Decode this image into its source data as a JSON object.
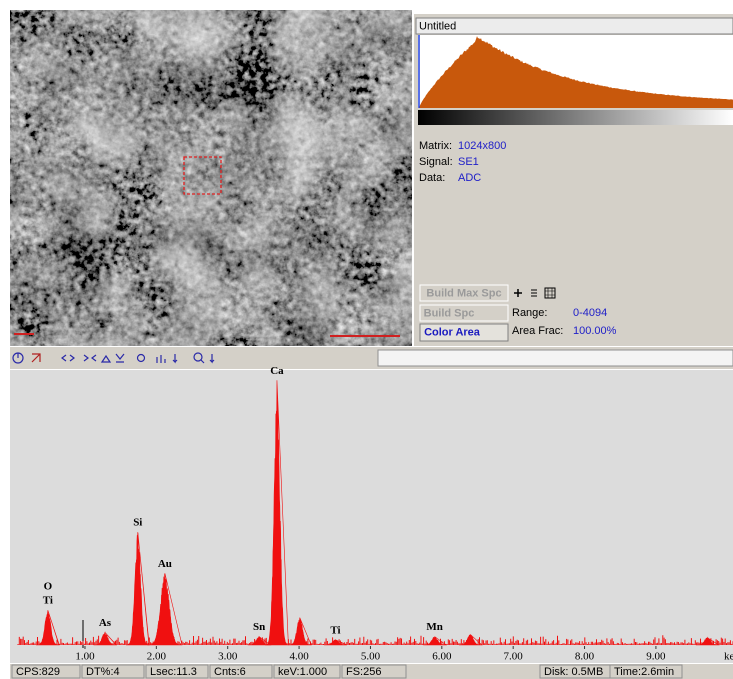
{
  "panel": {
    "title": "Untitled",
    "matrix_label": "Matrix:",
    "matrix_value": "1024x800",
    "signal_label": "Signal:",
    "signal_value": "SE1",
    "data_label": "Data:",
    "data_value": "ADC",
    "buttons": [
      "Build Max Spc",
      "Build Spc",
      "Color Area"
    ],
    "range_label": "Range:",
    "range_value": "0-4094",
    "area_frac_label": "Area Frac:",
    "area_frac_value": "100.00%"
  },
  "spectrum": {
    "xlim": [
      0,
      10.08
    ],
    "ylim": [
      0,
      256
    ],
    "xticks": [
      {
        "value": 1,
        "label": "1.00"
      },
      {
        "value": 2,
        "label": "2.00"
      },
      {
        "value": 3,
        "label": "3.00"
      },
      {
        "value": 4,
        "label": "4.00"
      },
      {
        "value": 5,
        "label": "5.00"
      },
      {
        "value": 6,
        "label": "6.00"
      },
      {
        "value": 7,
        "label": "7.00"
      },
      {
        "value": 8,
        "label": "8.00"
      },
      {
        "value": 9,
        "label": "9.00"
      }
    ],
    "x_unit": "ke",
    "peaks": [
      {
        "labels": [
          "O",
          "Ti"
        ],
        "x": 0.48,
        "counts": 33
      },
      {
        "labels": [
          "As"
        ],
        "x": 1.28,
        "counts": 12
      },
      {
        "labels": [
          "Si"
        ],
        "x": 1.74,
        "counts": 107
      },
      {
        "labels": [
          "Au"
        ],
        "x": 2.12,
        "counts": 68
      },
      {
        "labels": [
          "Sn"
        ],
        "x": 3.44,
        "counts": 8
      },
      {
        "labels": [
          "Ca"
        ],
        "x": 3.69,
        "counts": 251
      },
      {
        "x": 4.01,
        "counts": 26
      },
      {
        "labels": [
          "Ti"
        ],
        "x": 4.51,
        "counts": 5
      },
      {
        "labels": [
          "Mn"
        ],
        "x": 5.9,
        "counts": 8
      },
      {
        "x": 6.4,
        "counts": 10
      },
      {
        "x": 9.72,
        "counts": 7
      }
    ]
  },
  "status_bar": [
    "CPS:829",
    "DT%:4",
    "Lsec:11.3",
    "Cnts:6",
    "keV:1.000",
    "FS:256",
    "Disk: 0.5MB",
    "Time:2.6min"
  ]
}
